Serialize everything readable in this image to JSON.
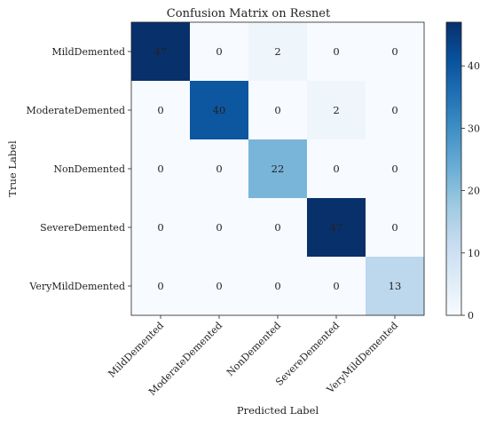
{
  "chart_data": {
    "type": "heatmap",
    "title": "Confusion Matrix on Resnet",
    "xlabel": "Predicted Label",
    "ylabel": "True Label",
    "x_categories": [
      "MildDemented",
      "ModerateDemented",
      "NonDemented",
      "SevereDemented",
      "VeryMildDemented"
    ],
    "y_categories": [
      "MildDemented",
      "ModerateDemented",
      "NonDemented",
      "SevereDemented",
      "VeryMildDemented"
    ],
    "values": [
      [
        47,
        0,
        2,
        0,
        0
      ],
      [
        0,
        40,
        0,
        2,
        0
      ],
      [
        0,
        0,
        22,
        0,
        0
      ],
      [
        0,
        0,
        0,
        47,
        0
      ],
      [
        0,
        0,
        0,
        0,
        13
      ]
    ],
    "colormap": "Blues",
    "color_range": [
      0,
      47
    ],
    "colorbar_ticks": [
      0,
      10,
      20,
      30,
      40
    ],
    "colors": {
      "low": "#f7fbff",
      "high": "#08306b",
      "label_on_dark": "#ffffff",
      "label_on_light": "#000000"
    }
  }
}
